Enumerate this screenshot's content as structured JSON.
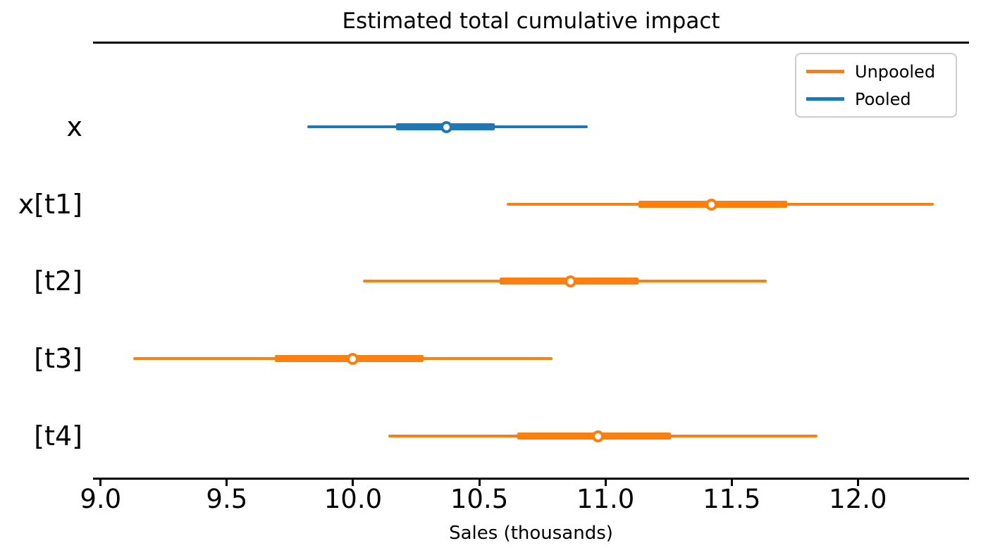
{
  "title": "Estimated total cumulative impact",
  "xlabel": "Sales (thousands)",
  "legend": {
    "items": [
      {
        "label": "Unpooled",
        "color": "#ff7f0e"
      },
      {
        "label": "Pooled",
        "color": "#1f77b4"
      }
    ],
    "position": "upper right"
  },
  "colors": {
    "pooled": "#1f77b4",
    "unpooled": "#ff7f0e",
    "axis": "#000000",
    "marker_fill": "#ffffff",
    "legend_border": "#cccccc"
  },
  "chart_data": {
    "type": "forest",
    "title": "Estimated total cumulative impact",
    "xlabel": "Sales (thousands)",
    "ylabel": "",
    "xlim": [
      8.97,
      12.44
    ],
    "xticks": [
      9.0,
      9.5,
      10.0,
      10.5,
      11.0,
      11.5,
      12.0
    ],
    "xtick_labels": [
      "9.0",
      "9.5",
      "10.0",
      "10.5",
      "11.0",
      "11.5",
      "12.0"
    ],
    "grid": false,
    "legend_position": "upper right",
    "rows": [
      {
        "label": "x",
        "series": "Pooled",
        "color": "#1f77b4",
        "outer_interval": [
          9.82,
          10.93
        ],
        "inner_interval": [
          10.17,
          10.56
        ],
        "point": 10.37
      },
      {
        "label": "x[t1]",
        "series": "Unpooled",
        "color": "#ff7f0e",
        "outer_interval": [
          10.61,
          12.3
        ],
        "inner_interval": [
          11.13,
          11.72
        ],
        "point": 11.42
      },
      {
        "label": "[t2]",
        "series": "Unpooled",
        "color": "#ff7f0e",
        "outer_interval": [
          10.04,
          11.64
        ],
        "inner_interval": [
          10.58,
          11.13
        ],
        "point": 10.86
      },
      {
        "label": "[t3]",
        "series": "Unpooled",
        "color": "#ff7f0e",
        "outer_interval": [
          9.13,
          10.79
        ],
        "inner_interval": [
          9.69,
          10.28
        ],
        "point": 10.0
      },
      {
        "label": "[t4]",
        "series": "Unpooled",
        "color": "#ff7f0e",
        "outer_interval": [
          10.14,
          11.84
        ],
        "inner_interval": [
          10.65,
          11.26
        ],
        "point": 10.97
      }
    ]
  }
}
